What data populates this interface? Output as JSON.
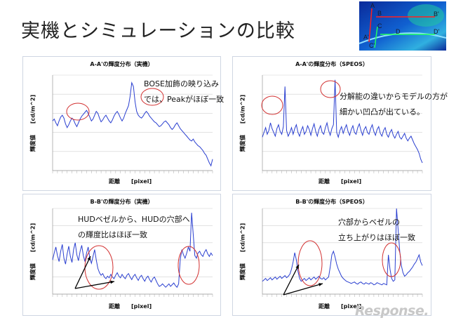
{
  "slide_title": "実機とシミュレーションの比較",
  "thumbnail": {
    "labels": [
      "A",
      "B",
      "B'",
      "A'",
      "C",
      "D",
      "D'",
      "C'"
    ],
    "colors": {
      "line_red": "#ff2020",
      "line_green": "#20ff60"
    }
  },
  "colors": {
    "series": "#2a3fd0",
    "annotation_circle": "#d23030",
    "arrow": "#000000"
  },
  "chart_data": [
    {
      "type": "line",
      "title": "A-A'の輝度分布（実機）",
      "ylabel": "輝度値　　[cd/m^2]",
      "xlabel": "距離　　[pixel]",
      "grid": true,
      "y": [
        52,
        54,
        50,
        47,
        52,
        56,
        58,
        55,
        49,
        45,
        48,
        52,
        55,
        53,
        49,
        46,
        50,
        54,
        57,
        59,
        61,
        63,
        60,
        56,
        52,
        54,
        58,
        62,
        60,
        55,
        51,
        53,
        56,
        58,
        55,
        52,
        50,
        53,
        57,
        60,
        62,
        59,
        55,
        52,
        55,
        60,
        64,
        68,
        78,
        92,
        88,
        72,
        62,
        58,
        56,
        55,
        57,
        60,
        62,
        60,
        57,
        55,
        53,
        51,
        50,
        48,
        46,
        47,
        49,
        51,
        52,
        50,
        48,
        45,
        43,
        45,
        48,
        50,
        47,
        44,
        42,
        40,
        38,
        36,
        34,
        32,
        31,
        33,
        30,
        28,
        26,
        25,
        23,
        21,
        18,
        16,
        12,
        8,
        5,
        12
      ],
      "annotation_lines": [
        "BOSE加飾の映り込み",
        "では、Peakがほぼ一致"
      ]
    },
    {
      "type": "line",
      "title": "A-A'の輝度分布（SPEOS）",
      "ylabel": "輝度値　　[cd/m^2]",
      "xlabel": "距離　　[pixel]",
      "grid": true,
      "y": [
        35,
        40,
        45,
        38,
        42,
        50,
        44,
        40,
        36,
        44,
        48,
        41,
        38,
        46,
        88,
        42,
        36,
        40,
        45,
        38,
        44,
        48,
        40,
        36,
        42,
        46,
        38,
        41,
        47,
        43,
        37,
        44,
        49,
        41,
        36,
        43,
        47,
        40,
        38,
        45,
        50,
        42,
        37,
        44,
        48,
        95,
        40,
        35,
        42,
        46,
        39,
        44,
        48,
        41,
        37,
        43,
        47,
        40,
        38,
        45,
        49,
        42,
        37,
        43,
        46,
        40,
        38,
        44,
        48,
        41,
        37,
        43,
        46,
        39,
        36,
        42,
        45,
        38,
        35,
        40,
        43,
        37,
        34,
        38,
        41,
        35,
        33,
        36,
        39,
        34,
        31,
        34,
        36,
        32,
        28,
        25,
        22,
        18,
        12,
        8
      ],
      "annotation_lines": [
        "分解能の違いからモデルの方が",
        "細かい凹凸が出ている。"
      ]
    },
    {
      "type": "line",
      "title": "B-B'の輝度分布（実機）",
      "ylabel": "輝度値　　[cd/m^2]",
      "xlabel": "距離　　[pixel]",
      "grid": true,
      "y": [
        40,
        48,
        55,
        45,
        38,
        50,
        58,
        42,
        35,
        47,
        56,
        44,
        37,
        52,
        60,
        46,
        39,
        50,
        57,
        45,
        38,
        48,
        55,
        42,
        36,
        44,
        52,
        40,
        30,
        25,
        22,
        24,
        20,
        18,
        21,
        19,
        23,
        20,
        18,
        22,
        25,
        21,
        19,
        23,
        20,
        18,
        22,
        24,
        20,
        17,
        21,
        23,
        19,
        16,
        20,
        22,
        18,
        15,
        19,
        21,
        17,
        14,
        18,
        20,
        16,
        12,
        9,
        10,
        12,
        10,
        8,
        10,
        12,
        9,
        11,
        13,
        10,
        8,
        12,
        40,
        52,
        46,
        42,
        48,
        55,
        50,
        95,
        70,
        45,
        42,
        48,
        50,
        46,
        44,
        49,
        52,
        47,
        44,
        48,
        45
      ],
      "annotation_lines": [
        "HUDベゼルから、HUDの穴部へ",
        "の輝度比はほぼ一致"
      ]
    },
    {
      "type": "line",
      "title": "B-B'の輝度分布（SPEOS）",
      "ylabel": "輝度値　　[cd/m^2]",
      "xlabel": "距離　　[pixel]",
      "grid": true,
      "y": [
        18,
        20,
        22,
        19,
        21,
        23,
        20,
        22,
        24,
        21,
        23,
        25,
        22,
        24,
        26,
        23,
        25,
        28,
        35,
        45,
        58,
        48,
        32,
        22,
        18,
        20,
        22,
        19,
        21,
        23,
        20,
        22,
        24,
        21,
        23,
        25,
        22,
        21,
        23,
        20,
        22,
        24,
        38,
        55,
        60,
        52,
        42,
        35,
        30,
        25,
        22,
        20,
        18,
        17,
        16,
        15,
        16,
        17,
        15,
        14,
        16,
        17,
        15,
        14,
        16,
        15,
        14,
        16,
        15,
        13,
        14,
        16,
        15,
        14,
        13,
        15,
        14,
        13,
        55,
        35,
        22,
        18,
        20,
        120,
        90,
        60,
        40,
        30,
        25,
        27,
        30,
        32,
        35,
        38,
        42,
        45,
        50,
        55,
        45,
        40
      ],
      "annotation_lines": [
        "穴部からベゼルの",
        "立ち上がりはほぼ一致"
      ]
    }
  ],
  "watermark": "Response."
}
